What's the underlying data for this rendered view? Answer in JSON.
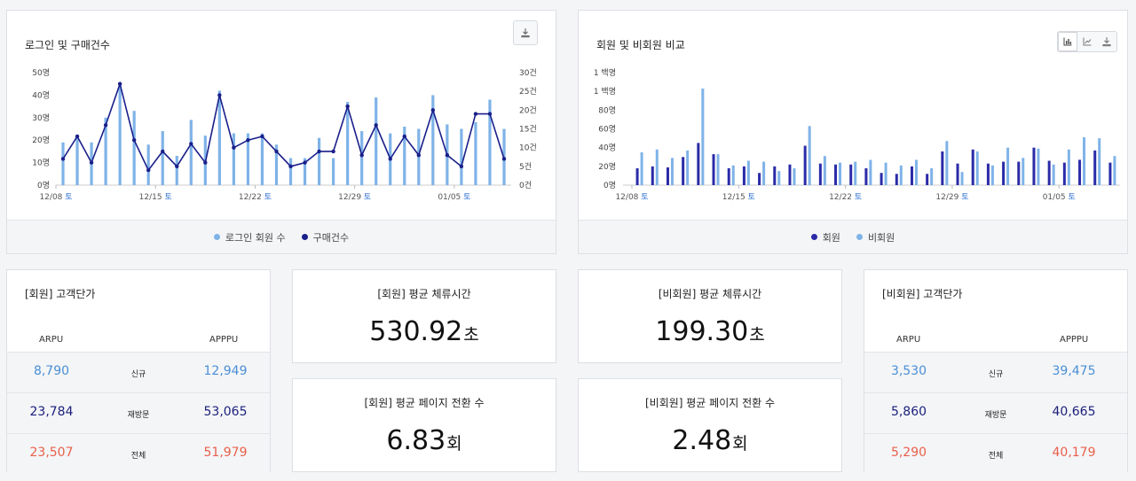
{
  "colors": {
    "login_bar": "#7fb3e8",
    "purchase_line": "#1a1f8a",
    "member_bar": "#2b2ba8",
    "nonmember_bar": "#7fb3e8",
    "arpu_new": "#4a8fd6",
    "arpu_revisit": "#1a1f7a",
    "arpu_total": "#e8604a"
  },
  "chart1": {
    "title": "로그인 및 구매건수",
    "download_icon": "download-icon",
    "legend": [
      "로그인 회원 수",
      "구매건수"
    ]
  },
  "chart2": {
    "title": "회원 및 비회원 비교",
    "icons": [
      "bar-chart-icon",
      "line-chart-icon",
      "download-icon"
    ],
    "legend": [
      "회원",
      "비회원"
    ]
  },
  "chart_data": [
    {
      "type": "bar",
      "title": "로그인 및 구매건수",
      "x_ticks": [
        {
          "date": "12/08",
          "day": "토",
          "index": 0
        },
        {
          "date": "12/15",
          "day": "토",
          "index": 7
        },
        {
          "date": "12/22",
          "day": "토",
          "index": 14
        },
        {
          "date": "12/29",
          "day": "토",
          "index": 21
        },
        {
          "date": "01/05",
          "day": "토",
          "index": 28
        }
      ],
      "y_left": {
        "ticks": [
          "0명",
          "10명",
          "20명",
          "30명",
          "40명",
          "50명"
        ],
        "range": [
          0,
          50
        ]
      },
      "y_right": {
        "ticks": [
          "0건",
          "5건",
          "10건",
          "15건",
          "20건",
          "25건",
          "30건"
        ],
        "range": [
          0,
          30
        ]
      },
      "series": [
        {
          "name": "로그인 회원 수",
          "type": "bar",
          "axis": "left",
          "values": [
            19,
            22,
            19,
            30,
            45,
            33,
            18,
            24,
            13,
            29,
            22,
            42,
            23,
            23,
            23,
            18,
            12,
            12,
            21,
            12,
            37,
            24,
            39,
            23,
            26,
            25,
            40,
            27,
            25,
            28,
            38,
            25
          ]
        },
        {
          "name": "구매건수",
          "type": "line",
          "axis": "right",
          "values": [
            7,
            13,
            6,
            16,
            27,
            12,
            4,
            9,
            5,
            11,
            6,
            24,
            10,
            12,
            13,
            9,
            5,
            6,
            9,
            9,
            21,
            8,
            16,
            7,
            13,
            8,
            20,
            8,
            5,
            19,
            19,
            7
          ]
        }
      ],
      "legend_placement": "bottom"
    },
    {
      "type": "bar",
      "title": "회원 및 비회원 비교",
      "x_ticks": [
        {
          "date": "12/08",
          "day": "토",
          "index": 0
        },
        {
          "date": "12/15",
          "day": "토",
          "index": 7
        },
        {
          "date": "12/22",
          "day": "토",
          "index": 14
        },
        {
          "date": "12/29",
          "day": "토",
          "index": 21
        },
        {
          "date": "01/05",
          "day": "토",
          "index": 28
        }
      ],
      "y_axis": {
        "ticks": [
          "0명",
          "20명",
          "40명",
          "60명",
          "80명",
          "1 백명",
          "1 백명"
        ],
        "range": [
          0,
          120
        ]
      },
      "series": [
        {
          "name": "회원",
          "type": "bar",
          "values": [
            18,
            20,
            19,
            30,
            45,
            33,
            18,
            20,
            13,
            20,
            22,
            42,
            23,
            22,
            22,
            18,
            13,
            12,
            20,
            12,
            36,
            23,
            38,
            23,
            25,
            25,
            40,
            26,
            24,
            27,
            37,
            24
          ]
        },
        {
          "name": "비회원",
          "type": "bar",
          "values": [
            35,
            38,
            29,
            37,
            103,
            33,
            21,
            26,
            25,
            15,
            18,
            63,
            31,
            24,
            25,
            27,
            24,
            21,
            27,
            18,
            47,
            14,
            36,
            21,
            40,
            29,
            39,
            22,
            38,
            51,
            50,
            31
          ]
        }
      ],
      "legend_placement": "bottom"
    }
  ],
  "kpi": {
    "member_stay": {
      "title": "[회원] 평균 체류시간",
      "value": "530.92",
      "unit": "초"
    },
    "nonmember_stay": {
      "title": "[비회원] 평균 체류시간",
      "value": "199.30",
      "unit": "초"
    },
    "member_pages": {
      "title": "[회원] 평균 페이지 전환 수",
      "value": "6.83",
      "unit": "회"
    },
    "nonmember_pages": {
      "title": "[비회원] 평균 페이지 전환 수",
      "value": "2.48",
      "unit": "회"
    }
  },
  "arpu_member": {
    "title": "[회원] 고객단가",
    "head_left": "ARPU",
    "head_right": "APPPU",
    "rows": [
      {
        "label": "신규",
        "arpu": "8,790",
        "apppu": "12,949"
      },
      {
        "label": "재방문",
        "arpu": "23,784",
        "apppu": "53,065"
      },
      {
        "label": "전체",
        "arpu": "23,507",
        "apppu": "51,979"
      }
    ]
  },
  "arpu_nonmember": {
    "title": "[비회원] 고객단가",
    "head_left": "ARPU",
    "head_right": "APPPU",
    "rows": [
      {
        "label": "신규",
        "arpu": "3,530",
        "apppu": "39,475"
      },
      {
        "label": "재방문",
        "arpu": "5,860",
        "apppu": "40,665"
      },
      {
        "label": "전체",
        "arpu": "5,290",
        "apppu": "40,179"
      }
    ]
  }
}
